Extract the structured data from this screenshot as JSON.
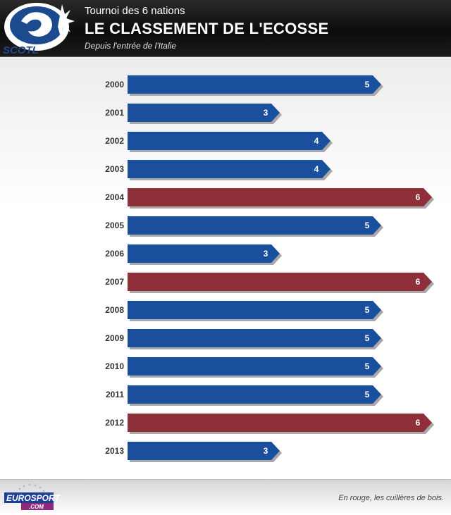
{
  "header": {
    "logo_text": "SCOTL",
    "subtitle_top": "Tournoi des 6 nations",
    "title": "LE CLASSEMENT DE L'ECOSSE",
    "subtitle": "Depuis l'entrée de l'Italie"
  },
  "colors": {
    "bar_default": "#1a4f9e",
    "bar_highlight": "#8e2f3a"
  },
  "chart_data": {
    "type": "bar",
    "orientation": "horizontal",
    "categories": [
      "2000",
      "2001",
      "2002",
      "2003",
      "2004",
      "2005",
      "2006",
      "2007",
      "2008",
      "2009",
      "2010",
      "2011",
      "2012",
      "2013"
    ],
    "values": [
      5,
      3,
      4,
      4,
      6,
      5,
      3,
      6,
      5,
      5,
      5,
      5,
      6,
      3
    ],
    "highlighted": [
      false,
      false,
      false,
      false,
      true,
      false,
      false,
      true,
      false,
      false,
      false,
      false,
      true,
      false
    ],
    "xlim": [
      0,
      6
    ],
    "grid": false,
    "legend": "none"
  },
  "footer": {
    "brand_top": "EUROSPORT",
    "brand_bottom": ".COM",
    "note": "En rouge, les cuillères de bois."
  }
}
